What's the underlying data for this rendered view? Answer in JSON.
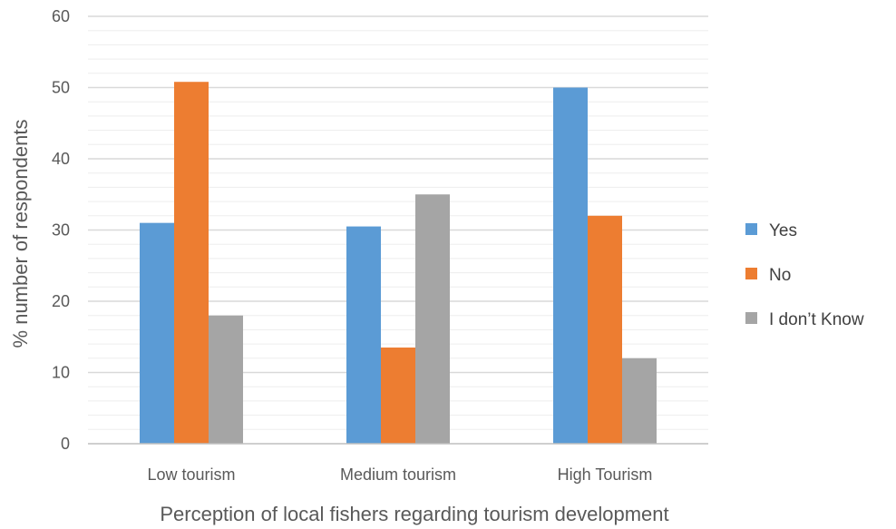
{
  "chart_data": {
    "type": "bar",
    "title": "",
    "xlabel": "Perception of local fishers regarding tourism development",
    "ylabel": "% number of respondents",
    "ylim": [
      0,
      60
    ],
    "yticks": [
      0,
      10,
      20,
      30,
      40,
      50,
      60
    ],
    "minor_grid_step": 2,
    "grid": true,
    "legend_position": "right",
    "categories": [
      "Low tourism",
      "Medium tourism",
      "High Tourism"
    ],
    "series": [
      {
        "name": "Yes",
        "color": "#5B9BD5",
        "values": [
          31,
          30.5,
          50
        ]
      },
      {
        "name": "No",
        "color": "#ED7D31",
        "values": [
          50.8,
          13.5,
          32
        ]
      },
      {
        "name": "I don’t Know",
        "color": "#A5A5A5",
        "values": [
          18,
          35,
          12
        ]
      }
    ]
  }
}
